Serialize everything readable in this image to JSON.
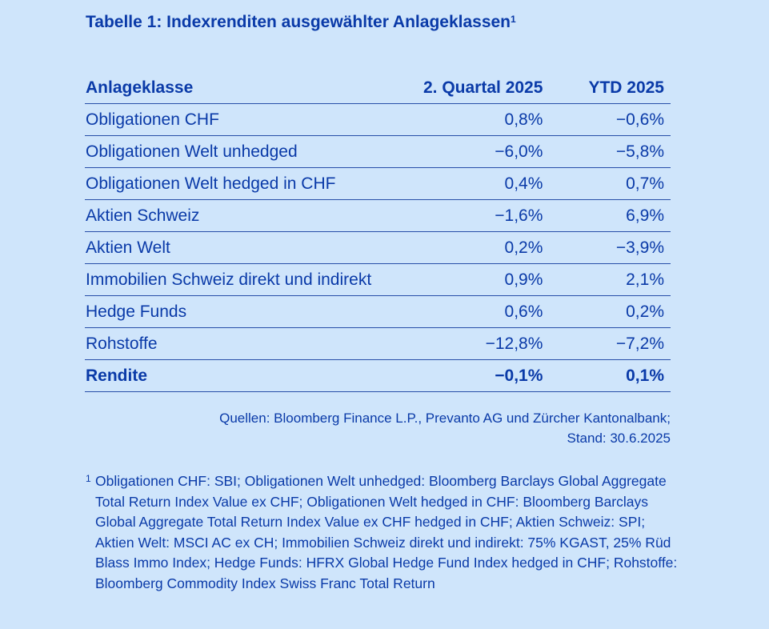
{
  "title": "Tabelle 1: Indexrenditen ausgewählter Anlageklassen",
  "title_footnote_mark": "1",
  "table": {
    "headers": [
      "Anlageklasse",
      "2. Quartal 2025",
      "YTD 2025"
    ],
    "rows": [
      [
        "Obligationen CHF",
        "0,8%",
        "−0,6%"
      ],
      [
        "Obligationen Welt unhedged",
        "−6,0%",
        "−5,8%"
      ],
      [
        "Obligationen Welt hedged in CHF",
        "0,4%",
        "0,7%"
      ],
      [
        "Aktien Schweiz",
        "−1,6%",
        "6,9%"
      ],
      [
        "Aktien Welt",
        "0,2%",
        "−3,9%"
      ],
      [
        "Immobilien Schweiz direkt und indirekt",
        "0,9%",
        "2,1%"
      ],
      [
        "Hedge Funds",
        "0,6%",
        "0,2%"
      ],
      [
        "Rohstoffe",
        "−12,8%",
        "−7,2%"
      ]
    ],
    "total": [
      "Rendite",
      "−0,1%",
      "0,1%"
    ]
  },
  "sources_line1": "Quellen: Bloomberg Finance L.P., Prevanto AG und Zürcher Kantonalbank;",
  "sources_line2": "Stand: 30.6.2025",
  "footnote_mark": "1",
  "footnote_text": "Obligationen CHF: SBI; Obligationen Welt unhedged: Bloomberg Barclays Global Aggregate Total Return Index Value ex CHF; Obligationen Welt hedged in CHF: Bloomberg Barclays Global Aggregate Total Return Index Value ex CHF hedged in CHF; Aktien Schweiz: SPI; Aktien Welt: MSCI AC ex CH; Immobilien Schweiz direkt und indirekt: 75% KGAST, 25% Rüd Blass Immo Index; Hedge Funds: HFRX Global Hedge Fund Index hedged in CHF; Rohstoffe: Bloomberg Commodity Index Swiss Franc Total Return",
  "colors": {
    "background": "#cfe5fb",
    "text": "#0a3aa8",
    "rule": "#274ea8"
  }
}
